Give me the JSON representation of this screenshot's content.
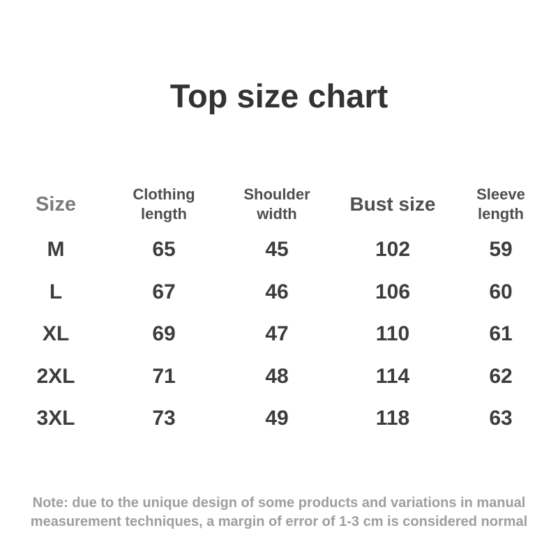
{
  "chart_data": {
    "type": "table",
    "title": "Top size chart",
    "columns": [
      "Size",
      "Clothing length",
      "Shoulder width",
      "Bust size",
      "Sleeve length"
    ],
    "rows": [
      [
        "M",
        65,
        45,
        102,
        59
      ],
      [
        "L",
        67,
        46,
        106,
        60
      ],
      [
        "XL",
        69,
        47,
        110,
        61
      ],
      [
        "2XL",
        71,
        48,
        114,
        62
      ],
      [
        "3XL",
        73,
        49,
        118,
        63
      ]
    ],
    "note": "Note: due to the unique design of some products and variations in manual measurement techniques, a margin of error of 1-3 cm is considered normal"
  },
  "note_lines": [
    "Note: due to the unique design of some products and variations in manual",
    "measurement techniques, a margin of error of 1-3 cm is considered normal"
  ],
  "colors": {
    "background": "#ffffff",
    "title": "#333333",
    "header_text": "#4f4f4f",
    "size_header_text": "#7b7b7b",
    "data_text": "#3d3d3d",
    "note_text": "#9e9e9e"
  }
}
